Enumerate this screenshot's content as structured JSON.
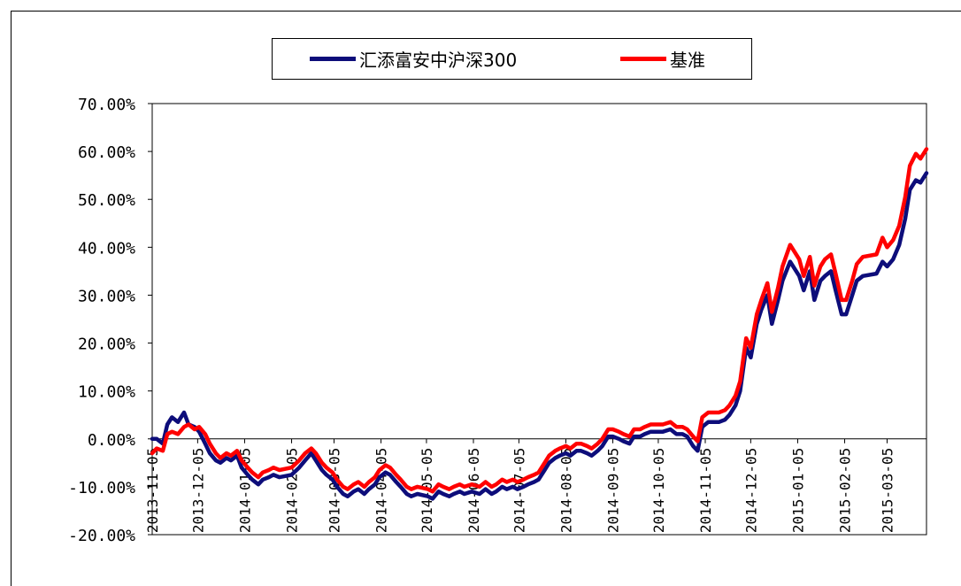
{
  "chart_data": {
    "type": "line",
    "legend_position": "top",
    "grid": false,
    "y_tick_labels": [
      "70.00%",
      "60.00%",
      "50.00%",
      "40.00%",
      "30.00%",
      "20.00%",
      "10.00%",
      "0.00%",
      "-10.00%",
      "-20.00%"
    ],
    "y_ticks": [
      70,
      60,
      50,
      40,
      30,
      20,
      10,
      0,
      -10,
      -20
    ],
    "ylim": [
      -20,
      70
    ],
    "x_tick_labels": [
      "2013-11-05",
      "2013-12-05",
      "2014-01-05",
      "2014-02-05",
      "2014-03-05",
      "2014-04-05",
      "2014-05-05",
      "2014-06-05",
      "2014-07-05",
      "2014-08-05",
      "2014-09-05",
      "2014-10-05",
      "2014-11-05",
      "2014-12-05",
      "2015-01-05",
      "2015-02-05",
      "2015-03-05"
    ],
    "x_last": "2015-03-31",
    "series": [
      {
        "name": "汇添富安中沪深300",
        "color": "#0d0d7a",
        "points": [
          [
            "2013-11-05",
            0.0
          ],
          [
            "2013-11-08",
            0.0
          ],
          [
            "2013-11-12",
            -1.0
          ],
          [
            "2013-11-15",
            3.0
          ],
          [
            "2013-11-18",
            4.5
          ],
          [
            "2013-11-22",
            3.5
          ],
          [
            "2013-11-26",
            5.5
          ],
          [
            "2013-11-29",
            3.0
          ],
          [
            "2013-12-03",
            2.5
          ],
          [
            "2013-12-06",
            1.5
          ],
          [
            "2013-12-10",
            -1.0
          ],
          [
            "2013-12-13",
            -3.0
          ],
          [
            "2013-12-17",
            -4.5
          ],
          [
            "2013-12-20",
            -5.0
          ],
          [
            "2013-12-24",
            -4.0
          ],
          [
            "2013-12-27",
            -4.5
          ],
          [
            "2013-12-31",
            -3.5
          ],
          [
            "2014-01-03",
            -6.0
          ],
          [
            "2014-01-07",
            -7.5
          ],
          [
            "2014-01-10",
            -8.5
          ],
          [
            "2014-01-14",
            -9.5
          ],
          [
            "2014-01-17",
            -8.5
          ],
          [
            "2014-01-21",
            -8.0
          ],
          [
            "2014-01-24",
            -7.5
          ],
          [
            "2014-01-28",
            -8.0
          ],
          [
            "2014-02-05",
            -7.5
          ],
          [
            "2014-02-10",
            -6.0
          ],
          [
            "2014-02-14",
            -4.5
          ],
          [
            "2014-02-18",
            -3.0
          ],
          [
            "2014-02-21",
            -4.5
          ],
          [
            "2014-02-25",
            -6.5
          ],
          [
            "2014-02-28",
            -7.5
          ],
          [
            "2014-03-04",
            -8.5
          ],
          [
            "2014-03-07",
            -10.0
          ],
          [
            "2014-03-11",
            -11.5
          ],
          [
            "2014-03-14",
            -12.0
          ],
          [
            "2014-03-18",
            -11.0
          ],
          [
            "2014-03-21",
            -10.5
          ],
          [
            "2014-03-25",
            -11.5
          ],
          [
            "2014-03-28",
            -10.5
          ],
          [
            "2014-04-01",
            -9.5
          ],
          [
            "2014-04-04",
            -8.0
          ],
          [
            "2014-04-08",
            -7.0
          ],
          [
            "2014-04-11",
            -7.5
          ],
          [
            "2014-04-15",
            -9.0
          ],
          [
            "2014-04-18",
            -10.0
          ],
          [
            "2014-04-22",
            -11.5
          ],
          [
            "2014-04-25",
            -12.0
          ],
          [
            "2014-04-29",
            -11.5
          ],
          [
            "2014-05-06",
            -12.0
          ],
          [
            "2014-05-09",
            -12.5
          ],
          [
            "2014-05-13",
            -11.0
          ],
          [
            "2014-05-16",
            -11.5
          ],
          [
            "2014-05-20",
            -12.0
          ],
          [
            "2014-05-23",
            -11.5
          ],
          [
            "2014-05-27",
            -11.0
          ],
          [
            "2014-05-30",
            -11.5
          ],
          [
            "2014-06-04",
            -11.0
          ],
          [
            "2014-06-09",
            -11.5
          ],
          [
            "2014-06-13",
            -10.5
          ],
          [
            "2014-06-17",
            -11.5
          ],
          [
            "2014-06-20",
            -11.0
          ],
          [
            "2014-06-24",
            -10.0
          ],
          [
            "2014-06-27",
            -10.5
          ],
          [
            "2014-07-01",
            -10.0
          ],
          [
            "2014-07-04",
            -10.5
          ],
          [
            "2014-07-08",
            -10.0
          ],
          [
            "2014-07-11",
            -9.5
          ],
          [
            "2014-07-15",
            -9.0
          ],
          [
            "2014-07-18",
            -8.5
          ],
          [
            "2014-07-22",
            -6.5
          ],
          [
            "2014-07-25",
            -5.0
          ],
          [
            "2014-07-29",
            -4.0
          ],
          [
            "2014-08-01",
            -3.5
          ],
          [
            "2014-08-05",
            -3.0
          ],
          [
            "2014-08-08",
            -3.5
          ],
          [
            "2014-08-12",
            -2.5
          ],
          [
            "2014-08-15",
            -2.5
          ],
          [
            "2014-08-19",
            -3.0
          ],
          [
            "2014-08-22",
            -3.5
          ],
          [
            "2014-08-26",
            -2.5
          ],
          [
            "2014-08-29",
            -1.5
          ],
          [
            "2014-09-02",
            0.5
          ],
          [
            "2014-09-05",
            0.5
          ],
          [
            "2014-09-09",
            0.0
          ],
          [
            "2014-09-12",
            -0.5
          ],
          [
            "2014-09-16",
            -1.0
          ],
          [
            "2014-09-19",
            0.5
          ],
          [
            "2014-09-23",
            0.5
          ],
          [
            "2014-09-26",
            1.0
          ],
          [
            "2014-09-30",
            1.5
          ],
          [
            "2014-10-08",
            1.5
          ],
          [
            "2014-10-13",
            2.0
          ],
          [
            "2014-10-17",
            1.0
          ],
          [
            "2014-10-21",
            1.0
          ],
          [
            "2014-10-24",
            0.5
          ],
          [
            "2014-10-28",
            -1.5
          ],
          [
            "2014-10-31",
            -2.5
          ],
          [
            "2014-11-03",
            2.5
          ],
          [
            "2014-11-07",
            3.5
          ],
          [
            "2014-11-11",
            3.5
          ],
          [
            "2014-11-14",
            3.5
          ],
          [
            "2014-11-18",
            4.0
          ],
          [
            "2014-11-21",
            5.0
          ],
          [
            "2014-11-25",
            7.0
          ],
          [
            "2014-11-28",
            10.0
          ],
          [
            "2014-12-02",
            19.0
          ],
          [
            "2014-12-05",
            17.0
          ],
          [
            "2014-12-09",
            24.0
          ],
          [
            "2014-12-12",
            27.0
          ],
          [
            "2014-12-16",
            30.0
          ],
          [
            "2014-12-19",
            24.0
          ],
          [
            "2014-12-23",
            29.0
          ],
          [
            "2014-12-26",
            33.0
          ],
          [
            "2014-12-31",
            37.0
          ],
          [
            "2015-01-06",
            34.0
          ],
          [
            "2015-01-09",
            31.0
          ],
          [
            "2015-01-13",
            35.0
          ],
          [
            "2015-01-16",
            29.0
          ],
          [
            "2015-01-20",
            33.0
          ],
          [
            "2015-01-23",
            34.0
          ],
          [
            "2015-01-27",
            35.0
          ],
          [
            "2015-01-30",
            31.0
          ],
          [
            "2015-02-03",
            26.0
          ],
          [
            "2015-02-06",
            26.0
          ],
          [
            "2015-02-10",
            30.0
          ],
          [
            "2015-02-13",
            33.0
          ],
          [
            "2015-02-17",
            34.0
          ],
          [
            "2015-02-26",
            34.5
          ],
          [
            "2015-03-02",
            37.0
          ],
          [
            "2015-03-05",
            36.0
          ],
          [
            "2015-03-09",
            37.5
          ],
          [
            "2015-03-13",
            40.5
          ],
          [
            "2015-03-17",
            46.0
          ],
          [
            "2015-03-20",
            52.0
          ],
          [
            "2015-03-24",
            54.0
          ],
          [
            "2015-03-27",
            53.5
          ],
          [
            "2015-03-31",
            55.5
          ]
        ]
      },
      {
        "name": "基准",
        "color": "#ff0000",
        "points": [
          [
            "2013-11-05",
            -3.0
          ],
          [
            "2013-11-08",
            -2.0
          ],
          [
            "2013-11-12",
            -2.5
          ],
          [
            "2013-11-15",
            1.0
          ],
          [
            "2013-11-18",
            1.5
          ],
          [
            "2013-11-22",
            1.0
          ],
          [
            "2013-11-26",
            2.5
          ],
          [
            "2013-11-29",
            3.0
          ],
          [
            "2013-12-03",
            2.0
          ],
          [
            "2013-12-06",
            2.5
          ],
          [
            "2013-12-10",
            1.0
          ],
          [
            "2013-12-13",
            -1.0
          ],
          [
            "2013-12-17",
            -3.0
          ],
          [
            "2013-12-20",
            -4.0
          ],
          [
            "2013-12-24",
            -3.0
          ],
          [
            "2013-12-27",
            -3.5
          ],
          [
            "2013-12-31",
            -2.5
          ],
          [
            "2014-01-03",
            -4.5
          ],
          [
            "2014-01-07",
            -6.0
          ],
          [
            "2014-01-10",
            -7.0
          ],
          [
            "2014-01-14",
            -8.0
          ],
          [
            "2014-01-17",
            -7.0
          ],
          [
            "2014-01-21",
            -6.5
          ],
          [
            "2014-01-24",
            -6.0
          ],
          [
            "2014-01-28",
            -6.5
          ],
          [
            "2014-02-05",
            -6.0
          ],
          [
            "2014-02-10",
            -4.5
          ],
          [
            "2014-02-14",
            -3.0
          ],
          [
            "2014-02-18",
            -2.0
          ],
          [
            "2014-02-21",
            -3.0
          ],
          [
            "2014-02-25",
            -5.0
          ],
          [
            "2014-02-28",
            -6.0
          ],
          [
            "2014-03-04",
            -7.0
          ],
          [
            "2014-03-07",
            -8.5
          ],
          [
            "2014-03-11",
            -10.0
          ],
          [
            "2014-03-14",
            -10.5
          ],
          [
            "2014-03-18",
            -9.5
          ],
          [
            "2014-03-21",
            -9.0
          ],
          [
            "2014-03-25",
            -10.0
          ],
          [
            "2014-03-28",
            -9.0
          ],
          [
            "2014-04-01",
            -8.0
          ],
          [
            "2014-04-04",
            -6.5
          ],
          [
            "2014-04-08",
            -5.5
          ],
          [
            "2014-04-11",
            -6.0
          ],
          [
            "2014-04-15",
            -7.5
          ],
          [
            "2014-04-18",
            -8.5
          ],
          [
            "2014-04-22",
            -10.0
          ],
          [
            "2014-04-25",
            -10.5
          ],
          [
            "2014-04-29",
            -10.0
          ],
          [
            "2014-05-06",
            -10.5
          ],
          [
            "2014-05-09",
            -11.0
          ],
          [
            "2014-05-13",
            -9.5
          ],
          [
            "2014-05-16",
            -10.0
          ],
          [
            "2014-05-20",
            -10.5
          ],
          [
            "2014-05-23",
            -10.0
          ],
          [
            "2014-05-27",
            -9.5
          ],
          [
            "2014-05-30",
            -10.0
          ],
          [
            "2014-06-04",
            -9.5
          ],
          [
            "2014-06-09",
            -10.0
          ],
          [
            "2014-06-13",
            -9.0
          ],
          [
            "2014-06-17",
            -10.0
          ],
          [
            "2014-06-20",
            -9.5
          ],
          [
            "2014-06-24",
            -8.5
          ],
          [
            "2014-06-27",
            -9.0
          ],
          [
            "2014-07-01",
            -8.5
          ],
          [
            "2014-07-04",
            -9.0
          ],
          [
            "2014-07-08",
            -8.5
          ],
          [
            "2014-07-11",
            -8.0
          ],
          [
            "2014-07-15",
            -7.5
          ],
          [
            "2014-07-18",
            -7.0
          ],
          [
            "2014-07-22",
            -5.0
          ],
          [
            "2014-07-25",
            -3.5
          ],
          [
            "2014-07-29",
            -2.5
          ],
          [
            "2014-08-01",
            -2.0
          ],
          [
            "2014-08-05",
            -1.5
          ],
          [
            "2014-08-08",
            -2.0
          ],
          [
            "2014-08-12",
            -1.0
          ],
          [
            "2014-08-15",
            -1.0
          ],
          [
            "2014-08-19",
            -1.5
          ],
          [
            "2014-08-22",
            -2.0
          ],
          [
            "2014-08-26",
            -1.0
          ],
          [
            "2014-08-29",
            0.0
          ],
          [
            "2014-09-02",
            2.0
          ],
          [
            "2014-09-05",
            2.0
          ],
          [
            "2014-09-09",
            1.5
          ],
          [
            "2014-09-12",
            1.0
          ],
          [
            "2014-09-16",
            0.5
          ],
          [
            "2014-09-19",
            2.0
          ],
          [
            "2014-09-23",
            2.0
          ],
          [
            "2014-09-26",
            2.5
          ],
          [
            "2014-09-30",
            3.0
          ],
          [
            "2014-10-08",
            3.0
          ],
          [
            "2014-10-13",
            3.5
          ],
          [
            "2014-10-17",
            2.5
          ],
          [
            "2014-10-21",
            2.5
          ],
          [
            "2014-10-24",
            2.0
          ],
          [
            "2014-10-28",
            0.5
          ],
          [
            "2014-10-31",
            -0.5
          ],
          [
            "2014-11-03",
            4.5
          ],
          [
            "2014-11-07",
            5.5
          ],
          [
            "2014-11-11",
            5.5
          ],
          [
            "2014-11-14",
            5.5
          ],
          [
            "2014-11-18",
            6.0
          ],
          [
            "2014-11-21",
            7.0
          ],
          [
            "2014-11-25",
            9.0
          ],
          [
            "2014-11-28",
            12.0
          ],
          [
            "2014-12-02",
            21.0
          ],
          [
            "2014-12-05",
            19.0
          ],
          [
            "2014-12-09",
            26.0
          ],
          [
            "2014-12-12",
            29.0
          ],
          [
            "2014-12-16",
            32.5
          ],
          [
            "2014-12-19",
            26.5
          ],
          [
            "2014-12-23",
            31.5
          ],
          [
            "2014-12-26",
            36.0
          ],
          [
            "2014-12-31",
            40.5
          ],
          [
            "2015-01-06",
            37.5
          ],
          [
            "2015-01-09",
            34.0
          ],
          [
            "2015-01-13",
            38.0
          ],
          [
            "2015-01-16",
            32.0
          ],
          [
            "2015-01-20",
            36.0
          ],
          [
            "2015-01-23",
            37.5
          ],
          [
            "2015-01-27",
            38.5
          ],
          [
            "2015-01-30",
            34.5
          ],
          [
            "2015-02-03",
            29.0
          ],
          [
            "2015-02-06",
            29.0
          ],
          [
            "2015-02-10",
            33.0
          ],
          [
            "2015-02-13",
            36.5
          ],
          [
            "2015-02-17",
            38.0
          ],
          [
            "2015-02-26",
            38.5
          ],
          [
            "2015-03-02",
            42.0
          ],
          [
            "2015-03-05",
            40.0
          ],
          [
            "2015-03-09",
            41.5
          ],
          [
            "2015-03-13",
            44.5
          ],
          [
            "2015-03-17",
            50.5
          ],
          [
            "2015-03-20",
            57.0
          ],
          [
            "2015-03-24",
            59.5
          ],
          [
            "2015-03-27",
            58.5
          ],
          [
            "2015-03-31",
            60.5
          ]
        ]
      }
    ]
  }
}
